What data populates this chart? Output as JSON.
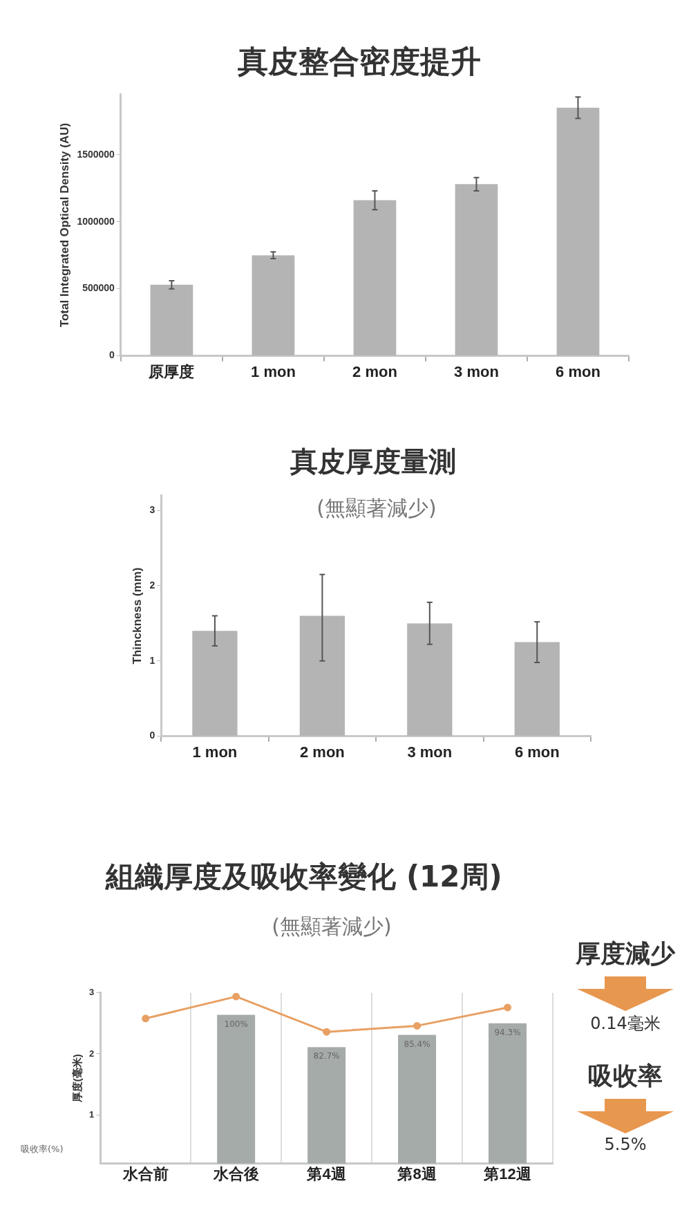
{
  "chart_data": [
    {
      "type": "bar",
      "title": "真皮整合密度提升",
      "ylabel": "Total Integrated Optical Density (AU)",
      "categories": [
        "原厚度",
        "1 mon",
        "2 mon",
        "3 mon",
        "6 mon"
      ],
      "values": [
        530000,
        750000,
        1160000,
        1280000,
        1850000
      ],
      "errors": [
        30000,
        25000,
        70000,
        50000,
        80000
      ],
      "color": "#b4b4b4",
      "ylim": [
        0,
        1950000
      ],
      "yticks": [
        0,
        500000,
        1000000,
        1500000
      ],
      "grid": false
    },
    {
      "type": "bar",
      "title": "真皮厚度量測",
      "subtitle": "(無顯著減少)",
      "ylabel": "Thinckness (mm)",
      "categories": [
        "1 mon",
        "2 mon",
        "3 mon",
        "6 mon"
      ],
      "values": [
        1.4,
        1.6,
        1.5,
        1.25
      ],
      "errors": [
        0.2,
        [
          1.0,
          2.15
        ],
        0.28,
        0.27
      ],
      "color": "#b4b4b4",
      "ylim": [
        0,
        3.2
      ],
      "yticks": [
        0,
        1,
        2,
        3
      ],
      "grid": false
    },
    {
      "type": "bar",
      "title": "組織厚度及吸收率變化 (12周)",
      "subtitle": "(無顯著減少)",
      "ylabel": "厚度(毫米)",
      "categories": [
        "水合前",
        "水合後",
        "第4週",
        "第8週",
        "第12週"
      ],
      "series": [
        {
          "type": "bar",
          "color": "#a5aba9",
          "values": [
            null,
            2.64,
            2.11,
            2.31,
            2.5
          ]
        },
        {
          "type": "line",
          "color": "#e8a063",
          "marker": "circle",
          "values": [
            2.58,
            2.94,
            2.36,
            2.46,
            2.76
          ]
        }
      ],
      "ylim": [
        0.2,
        3
      ],
      "yticks": [
        1,
        2,
        3
      ],
      "grid": "x",
      "annotations": [
        "吸收率(%)",
        "厚度減少",
        "0.14毫米",
        "吸收率",
        "5.5%",
        {
          "text": "100%",
          "x": "水合後",
          "y": 2.64
        },
        {
          "text": "82.7%",
          "x": "第4週",
          "y": 2.11
        },
        {
          "text": "85.4%",
          "x": "第8週",
          "y": 2.31
        },
        {
          "text": "94.3%",
          "x": "第12週",
          "y": 2.5
        }
      ]
    }
  ]
}
